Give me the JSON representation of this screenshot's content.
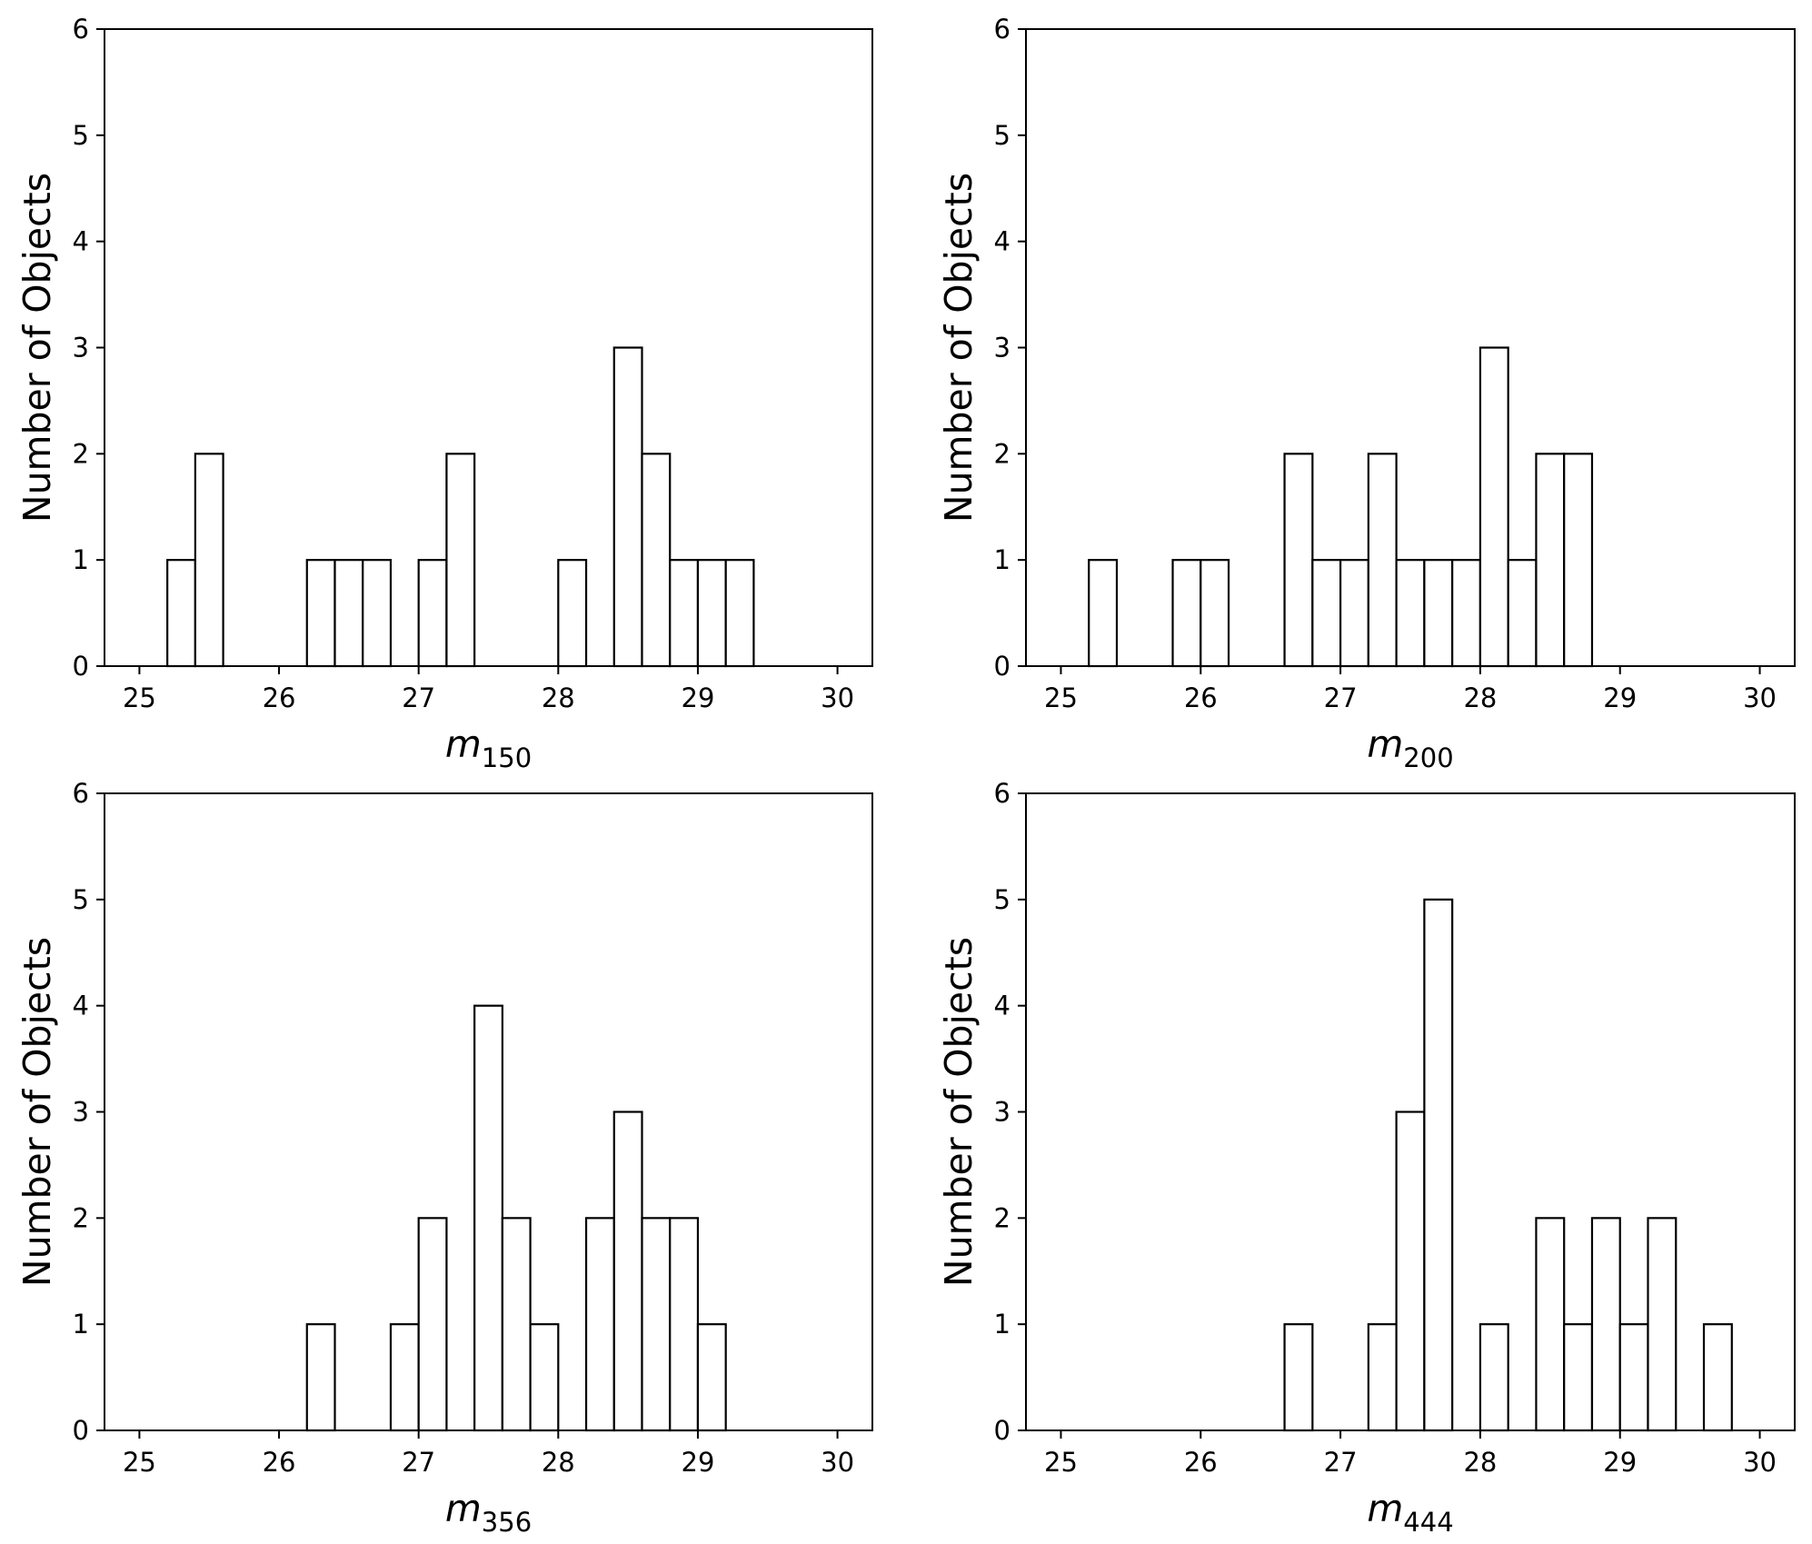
{
  "chart_data": [
    {
      "type": "histogram",
      "xlabel_main": "m",
      "xlabel_sub": "150",
      "ylabel": "Number of Objects",
      "xlim": [
        24.75,
        30.25
      ],
      "ylim": [
        0,
        6
      ],
      "xticks": [
        "25",
        "26",
        "27",
        "28",
        "29",
        "30"
      ],
      "yticks": [
        "0",
        "1",
        "2",
        "3",
        "4",
        "5",
        "6"
      ],
      "bin_width": 0.2,
      "bins": [
        {
          "start": 25.2,
          "count": 1
        },
        {
          "start": 25.4,
          "count": 2
        },
        {
          "start": 26.2,
          "count": 1
        },
        {
          "start": 26.4,
          "count": 1
        },
        {
          "start": 26.6,
          "count": 1
        },
        {
          "start": 27.0,
          "count": 1
        },
        {
          "start": 27.2,
          "count": 2
        },
        {
          "start": 28.0,
          "count": 1
        },
        {
          "start": 28.4,
          "count": 3
        },
        {
          "start": 28.6,
          "count": 2
        },
        {
          "start": 28.8,
          "count": 1
        },
        {
          "start": 29.0,
          "count": 1
        },
        {
          "start": 29.2,
          "count": 1
        }
      ]
    },
    {
      "type": "histogram",
      "xlabel_main": "m",
      "xlabel_sub": "200",
      "ylabel": "Number of Objects",
      "xlim": [
        24.75,
        30.25
      ],
      "ylim": [
        0,
        6
      ],
      "xticks": [
        "25",
        "26",
        "27",
        "28",
        "29",
        "30"
      ],
      "yticks": [
        "0",
        "1",
        "2",
        "3",
        "4",
        "5",
        "6"
      ],
      "bin_width": 0.2,
      "bins": [
        {
          "start": 25.2,
          "count": 1
        },
        {
          "start": 25.8,
          "count": 1
        },
        {
          "start": 26.0,
          "count": 1
        },
        {
          "start": 26.6,
          "count": 2
        },
        {
          "start": 26.8,
          "count": 1
        },
        {
          "start": 27.0,
          "count": 1
        },
        {
          "start": 27.2,
          "count": 2
        },
        {
          "start": 27.4,
          "count": 1
        },
        {
          "start": 27.6,
          "count": 1
        },
        {
          "start": 27.8,
          "count": 1
        },
        {
          "start": 28.0,
          "count": 3
        },
        {
          "start": 28.2,
          "count": 1
        },
        {
          "start": 28.4,
          "count": 2
        },
        {
          "start": 28.6,
          "count": 2
        }
      ]
    },
    {
      "type": "histogram",
      "xlabel_main": "m",
      "xlabel_sub": "356",
      "ylabel": "Number of Objects",
      "xlim": [
        24.75,
        30.25
      ],
      "ylim": [
        0,
        6
      ],
      "xticks": [
        "25",
        "26",
        "27",
        "28",
        "29",
        "30"
      ],
      "yticks": [
        "0",
        "1",
        "2",
        "3",
        "4",
        "5",
        "6"
      ],
      "bin_width": 0.2,
      "bins": [
        {
          "start": 26.2,
          "count": 1
        },
        {
          "start": 26.8,
          "count": 1
        },
        {
          "start": 27.0,
          "count": 2
        },
        {
          "start": 27.4,
          "count": 4
        },
        {
          "start": 27.6,
          "count": 2
        },
        {
          "start": 27.8,
          "count": 1
        },
        {
          "start": 28.2,
          "count": 2
        },
        {
          "start": 28.4,
          "count": 3
        },
        {
          "start": 28.6,
          "count": 2
        },
        {
          "start": 28.8,
          "count": 2
        },
        {
          "start": 29.0,
          "count": 1
        }
      ]
    },
    {
      "type": "histogram",
      "xlabel_main": "m",
      "xlabel_sub": "444",
      "ylabel": "Number of Objects",
      "xlim": [
        24.75,
        30.25
      ],
      "ylim": [
        0,
        6
      ],
      "xticks": [
        "25",
        "26",
        "27",
        "28",
        "29",
        "30"
      ],
      "yticks": [
        "0",
        "1",
        "2",
        "3",
        "4",
        "5",
        "6"
      ],
      "bin_width": 0.2,
      "bins": [
        {
          "start": 26.6,
          "count": 1
        },
        {
          "start": 27.2,
          "count": 1
        },
        {
          "start": 27.4,
          "count": 3
        },
        {
          "start": 27.6,
          "count": 5
        },
        {
          "start": 28.0,
          "count": 1
        },
        {
          "start": 28.4,
          "count": 2
        },
        {
          "start": 28.6,
          "count": 1
        },
        {
          "start": 28.8,
          "count": 2
        },
        {
          "start": 29.0,
          "count": 1
        },
        {
          "start": 29.2,
          "count": 2
        },
        {
          "start": 29.6,
          "count": 1
        }
      ]
    }
  ]
}
